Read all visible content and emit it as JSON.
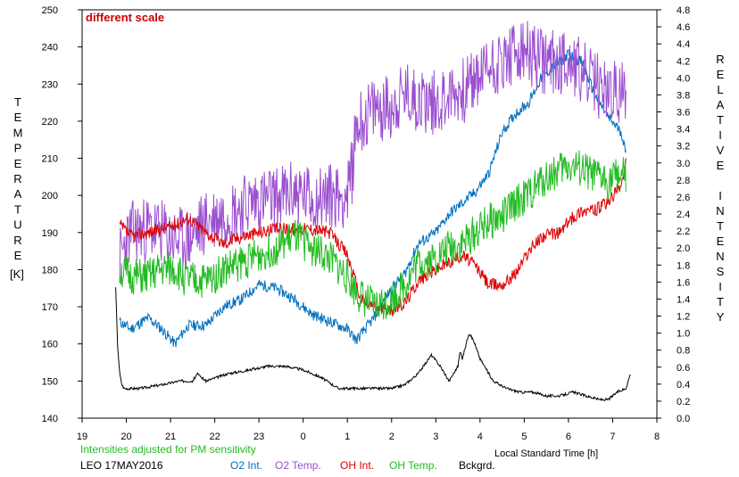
{
  "chart_data": {
    "type": "line",
    "annotation": "different scale",
    "ylabel_left": "TEMPERATURE",
    "ylabel_left_unit": "[K]",
    "ylabel_right": "RELATIVE INTENSITY",
    "xlabel": "Local Standard Time [h]",
    "footnote": "Intensities adjusted for PM sensitivity",
    "station": "LEO 17MAY2016",
    "x_ticks": [
      19,
      20,
      21,
      22,
      23,
      0,
      1,
      2,
      3,
      4,
      5,
      6,
      7,
      8
    ],
    "y_left_ticks": [
      140,
      150,
      160,
      170,
      180,
      190,
      200,
      210,
      220,
      230,
      240,
      250
    ],
    "y_right_ticks": [
      "0.0",
      "0.2",
      "0.4",
      "0.6",
      "0.8",
      "1.0",
      "1.2",
      "1.4",
      "1.6",
      "1.8",
      "2.0",
      "2.2",
      "2.4",
      "2.6",
      "2.8",
      "3.0",
      "3.2",
      "3.4",
      "3.6",
      "3.8",
      "4.0",
      "4.2",
      "4.4",
      "4.6",
      "4.8"
    ],
    "xlim": [
      19,
      32
    ],
    "ylim_left": [
      140,
      250
    ],
    "ylim_right": [
      0,
      4.8
    ],
    "series": [
      {
        "name": "O2 Int.",
        "color": "#0070c0",
        "axis": "left",
        "noise": 1.5,
        "seed": 11,
        "x": [
          19.85,
          20.1,
          20.5,
          20.8,
          21.1,
          21.4,
          21.8,
          22.2,
          22.6,
          23.0,
          23.4,
          23.8,
          24.2,
          24.6,
          25.0,
          25.2,
          25.6,
          26.0,
          26.3,
          26.6,
          27.0,
          27.3,
          27.6,
          27.9,
          28.2,
          28.5,
          28.8,
          29.1,
          29.4,
          29.8,
          30.0,
          30.3,
          30.6,
          30.9,
          31.2,
          31.3
        ],
        "y": [
          166,
          164,
          167,
          164,
          160,
          165,
          165,
          170,
          172,
          176,
          175,
          172,
          168,
          166,
          164,
          161,
          167,
          175,
          179,
          187,
          190,
          195,
          198,
          201,
          206,
          217,
          222,
          225,
          232,
          236,
          238,
          236,
          227,
          221,
          217,
          211
        ]
      },
      {
        "name": "O2 Temp.",
        "color": "#9b4fd0",
        "axis": "left",
        "noise": 9,
        "seed": 23,
        "x": [
          19.85,
          20.1,
          20.5,
          20.8,
          21.1,
          21.4,
          21.8,
          22.2,
          22.6,
          23.0,
          23.4,
          23.8,
          24.2,
          24.6,
          25.0,
          25.1,
          25.2,
          25.6,
          26.0,
          26.3,
          26.6,
          27.0,
          27.3,
          27.6,
          27.9,
          28.2,
          28.5,
          28.8,
          29.1,
          29.4,
          29.8,
          30.0,
          30.3,
          30.6,
          30.9,
          31.2,
          31.3
        ],
        "y": [
          183,
          190,
          191,
          190,
          188,
          188,
          193,
          195,
          197,
          199,
          199,
          201,
          199,
          200,
          200,
          206,
          219,
          223,
          224,
          227,
          226,
          225,
          227,
          228,
          231,
          235,
          236,
          238,
          238,
          236,
          236,
          237,
          233,
          230,
          228,
          227,
          229
        ]
      },
      {
        "name": "OH Int.",
        "color": "#dd0000",
        "axis": "left",
        "noise": 1.8,
        "seed": 37,
        "x": [
          19.85,
          20.1,
          20.5,
          20.8,
          21.1,
          21.4,
          21.8,
          22.2,
          22.6,
          23.0,
          23.4,
          23.8,
          24.2,
          24.6,
          25.0,
          25.3,
          25.6,
          26.0,
          26.3,
          26.6,
          27.0,
          27.3,
          27.6,
          27.9,
          28.2,
          28.5,
          28.8,
          29.1,
          29.4,
          29.8,
          30.0,
          30.3,
          30.6,
          30.9,
          31.2,
          31.3
        ],
        "y": [
          192,
          189,
          190,
          191,
          192,
          194,
          190,
          187,
          189,
          190,
          191,
          191,
          191,
          190,
          184,
          172,
          170,
          169,
          171,
          177,
          180,
          182,
          184,
          181,
          176,
          176,
          179,
          185,
          189,
          190,
          193,
          196,
          196,
          198,
          203,
          209
        ]
      },
      {
        "name": "OH Temp.",
        "color": "#22bb22",
        "axis": "left",
        "noise": 5,
        "seed": 51,
        "x": [
          19.85,
          20.1,
          20.5,
          20.8,
          21.1,
          21.4,
          21.8,
          22.2,
          22.6,
          23.0,
          23.4,
          23.8,
          24.2,
          24.6,
          25.0,
          25.2,
          25.6,
          26.0,
          26.3,
          26.6,
          27.0,
          27.3,
          27.6,
          27.9,
          28.2,
          28.5,
          28.8,
          29.1,
          29.4,
          29.8,
          30.0,
          30.3,
          30.6,
          30.9,
          31.2,
          31.3
        ],
        "y": [
          180,
          178,
          178,
          180,
          180,
          177,
          177,
          180,
          182,
          184,
          186,
          189,
          186,
          183,
          178,
          174,
          170,
          172,
          176,
          182,
          183,
          186,
          187,
          190,
          193,
          194,
          198,
          200,
          204,
          207,
          208,
          207,
          205,
          204,
          206,
          205
        ]
      },
      {
        "name": "Bckgrd.",
        "color": "#000000",
        "axis": "left",
        "noise": 0.35,
        "seed": 67,
        "x": [
          19.76,
          19.8,
          19.85,
          19.9,
          19.95,
          20.0,
          20.3,
          20.8,
          21.2,
          21.5,
          21.6,
          21.8,
          22.3,
          22.8,
          23.2,
          23.6,
          24.0,
          24.4,
          24.8,
          25.2,
          25.6,
          26.0,
          26.3,
          26.6,
          26.9,
          27.1,
          27.3,
          27.5,
          27.55,
          27.6,
          27.75,
          27.85,
          28.0,
          28.3,
          28.6,
          28.9,
          29.2,
          29.5,
          29.8,
          30.1,
          30.4,
          30.7,
          30.9,
          31.1,
          31.3,
          31.4
        ],
        "y": [
          175,
          160,
          152,
          149,
          148,
          148,
          148,
          149,
          150,
          150,
          152,
          150,
          152,
          153,
          154,
          154,
          153,
          151,
          148,
          148,
          148,
          148,
          149,
          152,
          157,
          154,
          150,
          154,
          158,
          156,
          163,
          161,
          156,
          150,
          148,
          147,
          147,
          146,
          146,
          147,
          146,
          145,
          145,
          147,
          148,
          152
        ]
      }
    ]
  }
}
